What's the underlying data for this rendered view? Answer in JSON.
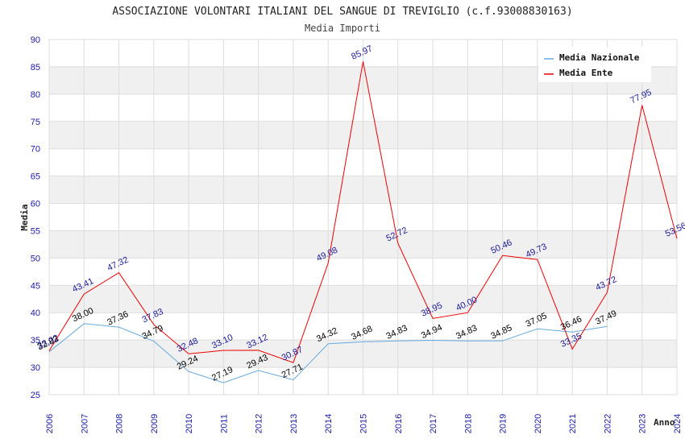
{
  "chart_data": {
    "type": "line",
    "title": "ASSOCIAZIONE VOLONTARI ITALIANI DEL SANGUE DI TREVIGLIO (c.f.93008830163)",
    "subtitle": "Media Importi",
    "xlabel": "Anno",
    "ylabel": "Media",
    "ylim": [
      25,
      90
    ],
    "yticks": [
      25,
      30,
      35,
      40,
      45,
      50,
      55,
      60,
      65,
      70,
      75,
      80,
      85,
      90
    ],
    "categories": [
      "2006",
      "2007",
      "2008",
      "2009",
      "2010",
      "2011",
      "2012",
      "2013",
      "2014",
      "2015",
      "2016",
      "2017",
      "2018",
      "2019",
      "2020",
      "2021",
      "2022",
      "2023",
      "2024"
    ],
    "series": [
      {
        "name": "Media Nazionale",
        "color": "#66aadd",
        "label_color": "#000000",
        "values": [
          32.83,
          38.0,
          37.36,
          34.79,
          29.24,
          27.19,
          29.43,
          27.71,
          34.32,
          34.68,
          34.83,
          34.94,
          34.83,
          34.85,
          37.05,
          36.46,
          37.49,
          null,
          null
        ],
        "labels": [
          "32.83",
          "38.00",
          "37.36",
          "34.79",
          "29.24",
          "27.19",
          "29.43",
          "27.71",
          "34.32",
          "34.68",
          "34.83",
          "34.94",
          "34.83",
          "34.85",
          "37.05",
          "36.46",
          "37.49",
          null,
          null
        ]
      },
      {
        "name": "Media Ente",
        "color": "#ee0000",
        "label_color": "#1a1a99",
        "values": [
          33.02,
          43.41,
          47.32,
          37.83,
          32.48,
          33.1,
          33.12,
          30.87,
          49.08,
          85.97,
          52.72,
          38.95,
          40.0,
          50.46,
          49.73,
          33.35,
          43.72,
          77.95,
          53.56
        ],
        "labels": [
          "33.02",
          "43.41",
          "47.32",
          "37.83",
          "32.48",
          "33.10",
          "33.12",
          "30.87",
          "49.08",
          "85.97",
          "52.72",
          "38.95",
          "40.00",
          "50.46",
          "49.73",
          "33.35",
          "43.72",
          "77.95",
          "53.56"
        ]
      }
    ],
    "legend_position": "top-right",
    "grid": true,
    "band_color": "#f0f0f0",
    "grid_color": "#dddddd"
  }
}
